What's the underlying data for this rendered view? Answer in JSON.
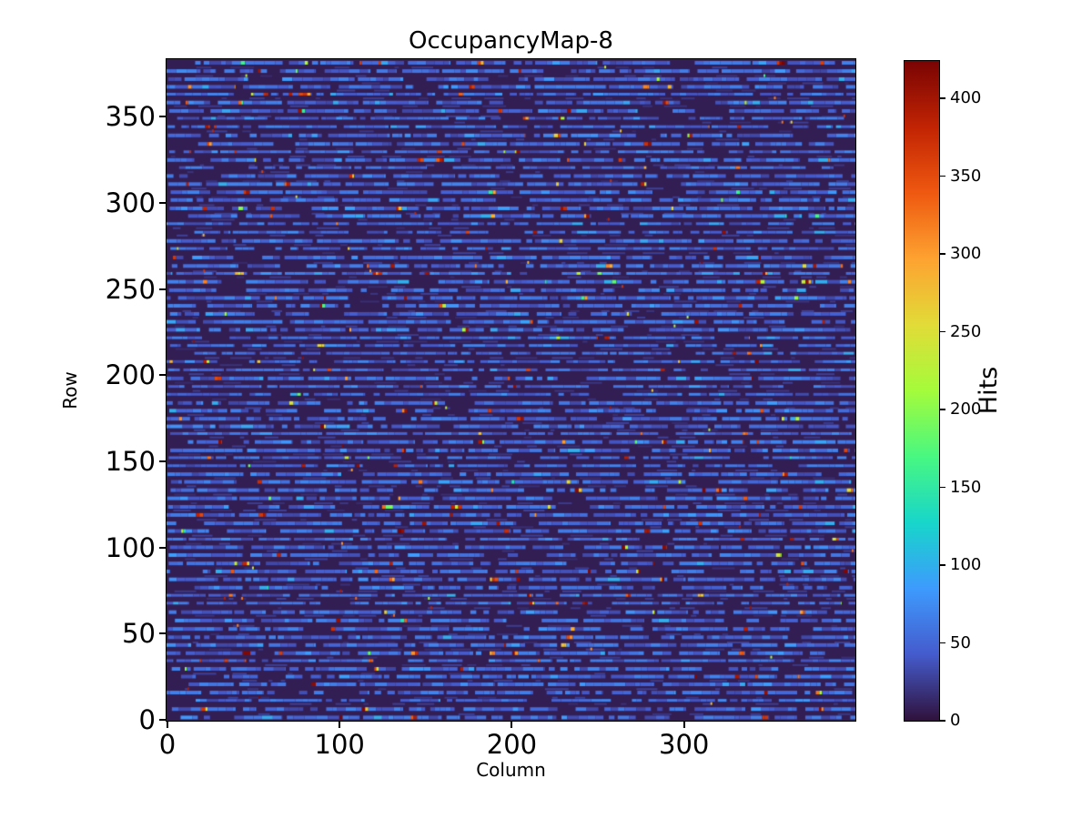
{
  "figure": {
    "background": "#ffffff",
    "text_color": "#000000"
  },
  "chart_data": {
    "type": "heatmap",
    "title": "OccupancyMap-8",
    "xlabel": "Column",
    "ylabel": "Row",
    "colorbar_label": "Hits",
    "n_cols": 400,
    "n_rows": 384,
    "x_range": [
      0,
      400
    ],
    "y_range": [
      0,
      384
    ],
    "x_ticks": [
      0,
      100,
      200,
      300
    ],
    "y_ticks": [
      0,
      50,
      100,
      150,
      200,
      250,
      300,
      350
    ],
    "colorbar_ticks": [
      0,
      50,
      100,
      150,
      200,
      250,
      300,
      350,
      400
    ],
    "vmin": 0,
    "vmax": 424,
    "grid": false,
    "legend": "none, colorbar on right",
    "colormap": "turbo",
    "colormap_stops": [
      [
        0.0,
        "#30123b"
      ],
      [
        0.1,
        "#455bcd"
      ],
      [
        0.2,
        "#3e9bfe"
      ],
      [
        0.3,
        "#18d6cb"
      ],
      [
        0.4,
        "#48f882"
      ],
      [
        0.5,
        "#a4fc3b"
      ],
      [
        0.6,
        "#e2dc38"
      ],
      [
        0.7,
        "#fea331"
      ],
      [
        0.8,
        "#ef5911"
      ],
      [
        0.9,
        "#c22403"
      ],
      [
        1.0,
        "#7a0403"
      ]
    ],
    "description": "Pixel-detector occupancy map: horizontal dashed rows of low occupancy (~30-70 hits, blue) on a near-zero dark-purple background, with scattered hot pixels (cyan/green/yellow/orange/red) up to ~424 hits.",
    "texture": {
      "seed": 20240817,
      "bg_value": 7,
      "line_height": 4,
      "line_spacing_min": 8.3,
      "line_spacing_max": 9.4,
      "first_line_y": 2,
      "big_gap_prob": 0.15,
      "hot_prob": 0.045,
      "light_prob": 0.08,
      "faint_prob": 0.38,
      "dash_value_min": 30,
      "dash_value_span": 40,
      "hot_value_min": 110,
      "faint_value_min": 14,
      "faint_value_span": 14
    }
  }
}
